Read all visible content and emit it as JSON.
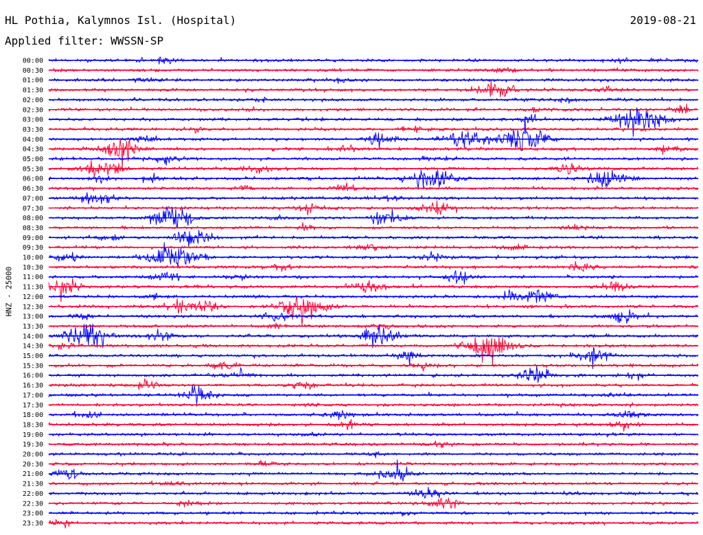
{
  "header": {
    "station": "HL Pothia, Kalymnos Isl. (Hospital)",
    "date": "2019-08-21",
    "filter": "Applied filter: WWSSN-SP"
  },
  "colors": {
    "trace_even": "#0000ff",
    "trace_odd": "#ff0033",
    "background": "#ffffff",
    "text": "#000000"
  },
  "chart_data": {
    "type": "line",
    "subtype": "helicorder",
    "ylabel": "HNZ - 25000",
    "trace_colors": [
      "blue",
      "red"
    ],
    "rows": [
      {
        "label": "00:00",
        "events": [
          [
            0.18,
            0.6
          ],
          [
            0.88,
            0.4
          ]
        ]
      },
      {
        "label": "00:30",
        "events": [
          [
            0.7,
            0.5
          ]
        ]
      },
      {
        "label": "01:00",
        "events": [
          [
            0.45,
            0.4
          ],
          [
            0.15,
            0.5
          ]
        ]
      },
      {
        "label": "01:30",
        "events": [
          [
            0.69,
            1.7
          ],
          [
            0.86,
            0.6
          ]
        ]
      },
      {
        "label": "02:00",
        "events": [
          [
            0.33,
            0.4
          ],
          [
            0.8,
            0.5
          ]
        ]
      },
      {
        "label": "02:30",
        "events": [
          [
            0.32,
            0.4
          ],
          [
            0.75,
            0.5
          ],
          [
            0.98,
            0.7
          ]
        ]
      },
      {
        "label": "03:00",
        "events": [
          [
            0.91,
            2.8
          ],
          [
            0.74,
            0.6
          ]
        ]
      },
      {
        "label": "03:30",
        "events": [
          [
            0.56,
            0.7
          ],
          [
            0.23,
            0.4
          ]
        ]
      },
      {
        "label": "04:00",
        "events": [
          [
            0.73,
            2.8
          ],
          [
            0.64,
            1.8
          ],
          [
            0.51,
            1.2
          ],
          [
            0.15,
            0.6
          ]
        ]
      },
      {
        "label": "04:30",
        "events": [
          [
            0.11,
            2.2
          ],
          [
            0.46,
            0.6
          ],
          [
            0.95,
            0.8
          ]
        ]
      },
      {
        "label": "05:00",
        "events": [
          [
            0.18,
            0.9
          ],
          [
            0.59,
            0.8
          ]
        ]
      },
      {
        "label": "05:30",
        "events": [
          [
            0.08,
            2.0
          ],
          [
            0.32,
            1.0
          ],
          [
            0.8,
            1.0
          ]
        ]
      },
      {
        "label": "06:00",
        "events": [
          [
            0.59,
            2.3
          ],
          [
            0.86,
            2.0
          ],
          [
            0.08,
            0.8
          ],
          [
            0.16,
            0.5
          ]
        ]
      },
      {
        "label": "06:30",
        "events": [
          [
            0.46,
            0.6
          ],
          [
            0.3,
            0.4
          ]
        ]
      },
      {
        "label": "07:00",
        "events": [
          [
            0.08,
            1.3
          ],
          [
            0.52,
            0.6
          ]
        ]
      },
      {
        "label": "07:30",
        "events": [
          [
            0.6,
            1.5
          ],
          [
            0.4,
            1.0
          ]
        ]
      },
      {
        "label": "08:00",
        "events": [
          [
            0.19,
            2.2
          ],
          [
            0.52,
            1.4
          ],
          [
            0.35,
            0.6
          ]
        ]
      },
      {
        "label": "08:30",
        "events": [
          [
            0.81,
            0.6
          ],
          [
            0.4,
            0.4
          ]
        ]
      },
      {
        "label": "09:00",
        "events": [
          [
            0.22,
            1.8
          ],
          [
            0.09,
            0.6
          ]
        ]
      },
      {
        "label": "09:30",
        "events": [
          [
            0.49,
            0.9
          ],
          [
            0.72,
            0.6
          ]
        ]
      },
      {
        "label": "10:00",
        "events": [
          [
            0.19,
            2.6
          ],
          [
            0.03,
            0.9
          ],
          [
            0.59,
            0.8
          ]
        ]
      },
      {
        "label": "10:30",
        "events": [
          [
            0.36,
            0.6
          ],
          [
            0.82,
            0.8
          ]
        ]
      },
      {
        "label": "11:00",
        "events": [
          [
            0.18,
            1.1
          ],
          [
            0.63,
            1.1
          ],
          [
            0.29,
            0.6
          ]
        ]
      },
      {
        "label": "11:30",
        "events": [
          [
            0.02,
            1.5
          ],
          [
            0.49,
            1.4
          ],
          [
            0.87,
            0.9
          ]
        ]
      },
      {
        "label": "12:00",
        "events": [
          [
            0.75,
            1.5
          ],
          [
            0.71,
            0.9
          ],
          [
            0.16,
            0.4
          ]
        ]
      },
      {
        "label": "12:30",
        "events": [
          [
            0.39,
            2.8
          ],
          [
            0.2,
            1.0
          ],
          [
            0.24,
            0.9
          ]
        ]
      },
      {
        "label": "13:00",
        "events": [
          [
            0.88,
            1.4
          ],
          [
            0.35,
            0.9
          ],
          [
            0.05,
            0.6
          ]
        ]
      },
      {
        "label": "13:30",
        "events": [
          [
            0.51,
            0.6
          ],
          [
            0.35,
            0.5
          ]
        ]
      },
      {
        "label": "14:00",
        "events": [
          [
            0.06,
            2.4
          ],
          [
            0.51,
            1.8
          ],
          [
            0.17,
            0.9
          ]
        ]
      },
      {
        "label": "14:30",
        "events": [
          [
            0.68,
            2.6
          ],
          [
            0.03,
            0.6
          ]
        ]
      },
      {
        "label": "15:00",
        "events": [
          [
            0.84,
            1.7
          ],
          [
            0.55,
            1.0
          ]
        ]
      },
      {
        "label": "15:30",
        "events": [
          [
            0.27,
            0.8
          ],
          [
            0.58,
            0.6
          ]
        ]
      },
      {
        "label": "16:00",
        "events": [
          [
            0.75,
            1.6
          ],
          [
            0.29,
            0.9
          ],
          [
            0.9,
            0.6
          ]
        ]
      },
      {
        "label": "16:30",
        "events": [
          [
            0.15,
            0.9
          ],
          [
            0.39,
            0.8
          ]
        ]
      },
      {
        "label": "17:00",
        "events": [
          [
            0.23,
            1.5
          ],
          [
            0.87,
            0.5
          ]
        ]
      },
      {
        "label": "17:30",
        "events": [
          [
            0.4,
            0.3
          ]
        ]
      },
      {
        "label": "18:00",
        "events": [
          [
            0.45,
            0.8
          ],
          [
            0.89,
            1.0
          ],
          [
            0.06,
            0.6
          ]
        ]
      },
      {
        "label": "18:30",
        "events": [
          [
            0.46,
            0.8
          ],
          [
            0.88,
            0.9
          ]
        ]
      },
      {
        "label": "19:00",
        "events": [
          [
            0.4,
            0.4
          ]
        ]
      },
      {
        "label": "19:30",
        "events": [
          [
            0.6,
            0.5
          ]
        ]
      },
      {
        "label": "20:00",
        "events": [
          [
            0.5,
            0.4
          ]
        ]
      },
      {
        "label": "20:30",
        "events": [
          [
            0.33,
            0.5
          ]
        ]
      },
      {
        "label": "21:00",
        "events": [
          [
            0.53,
            1.7
          ],
          [
            0.03,
            1.1
          ]
        ]
      },
      {
        "label": "21:30",
        "events": [
          [
            0.2,
            0.5
          ]
        ]
      },
      {
        "label": "22:00",
        "events": [
          [
            0.58,
            1.2
          ]
        ]
      },
      {
        "label": "22:30",
        "events": [
          [
            0.61,
            1.4
          ],
          [
            0.21,
            0.6
          ]
        ]
      },
      {
        "label": "23:00",
        "events": [
          [
            0.55,
            0.4
          ]
        ]
      },
      {
        "label": "23:30",
        "events": [
          [
            0.02,
            0.8
          ]
        ]
      }
    ]
  }
}
